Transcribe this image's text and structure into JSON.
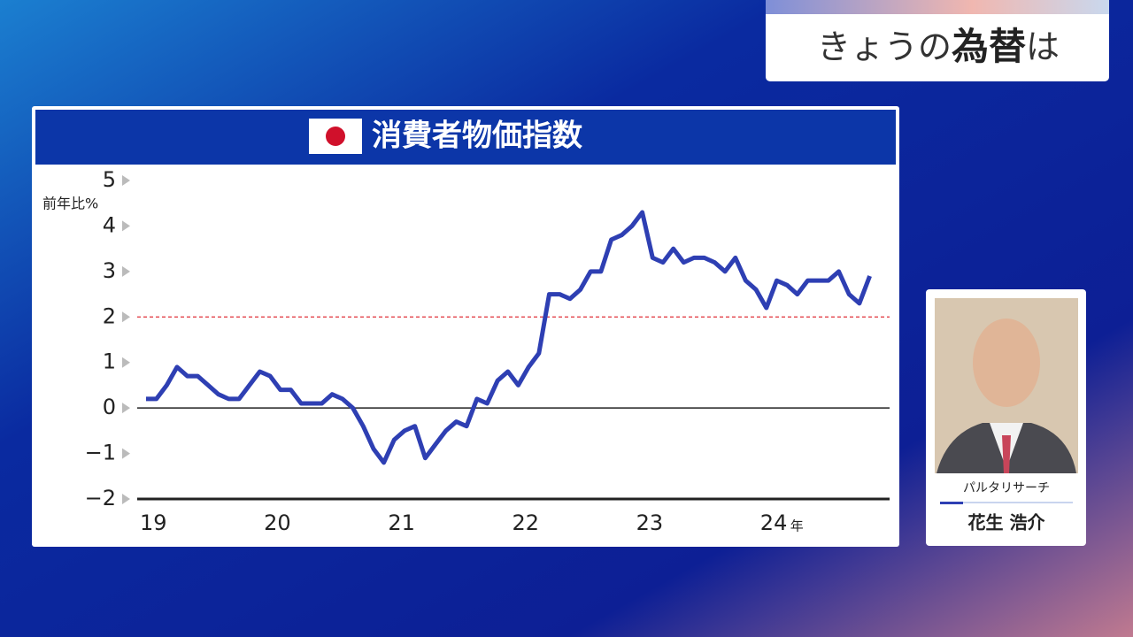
{
  "header": {
    "title_parts": [
      "きょうの",
      "為替",
      "は"
    ]
  },
  "guest": {
    "company": "パルタリサーチ",
    "name": "花生 浩介"
  },
  "chart_data": {
    "type": "line",
    "title": "消費者物価指数",
    "y_label": "前年比%",
    "x_unit": "年",
    "categories": [
      "19",
      null,
      null,
      null,
      null,
      null,
      null,
      null,
      null,
      null,
      null,
      null,
      "20",
      null,
      null,
      null,
      null,
      null,
      null,
      null,
      null,
      null,
      null,
      null,
      "21",
      null,
      null,
      null,
      null,
      null,
      null,
      null,
      null,
      null,
      null,
      null,
      "22",
      null,
      null,
      null,
      null,
      null,
      null,
      null,
      null,
      null,
      null,
      null,
      "23",
      null,
      null,
      null,
      null,
      null,
      null,
      null,
      null,
      null,
      null,
      null,
      "24",
      null,
      null,
      null,
      null,
      null,
      null,
      null,
      null,
      null,
      null
    ],
    "series": [
      {
        "color": "#2e3fb3",
        "values": [
          0.2,
          0.2,
          0.5,
          0.9,
          0.7,
          0.7,
          0.5,
          0.3,
          0.2,
          0.2,
          0.5,
          0.8,
          0.7,
          0.4,
          0.4,
          0.1,
          0.1,
          0.1,
          0.3,
          0.2,
          0.0,
          -0.4,
          -0.9,
          -1.2,
          -0.7,
          -0.5,
          -0.4,
          -1.1,
          -0.8,
          -0.5,
          -0.3,
          -0.4,
          0.2,
          0.1,
          0.6,
          0.8,
          0.5,
          0.9,
          1.2,
          2.5,
          2.5,
          2.4,
          2.6,
          3.0,
          3.0,
          3.7,
          3.8,
          4.0,
          4.3,
          3.3,
          3.2,
          3.5,
          3.2,
          3.3,
          3.3,
          3.2,
          3.0,
          3.3,
          2.8,
          2.6,
          2.2,
          2.8,
          2.7,
          2.5,
          2.8,
          2.8,
          2.8,
          3.0,
          2.5,
          2.3,
          2.9
        ]
      }
    ],
    "ylim": [
      -2,
      5
    ],
    "yticks": [
      {
        "value": -2,
        "label": "−2"
      },
      {
        "value": -1,
        "label": "−1"
      },
      0,
      1,
      2,
      3,
      4,
      5
    ],
    "reference_line": {
      "value": 2,
      "color": "#e0303a"
    }
  }
}
